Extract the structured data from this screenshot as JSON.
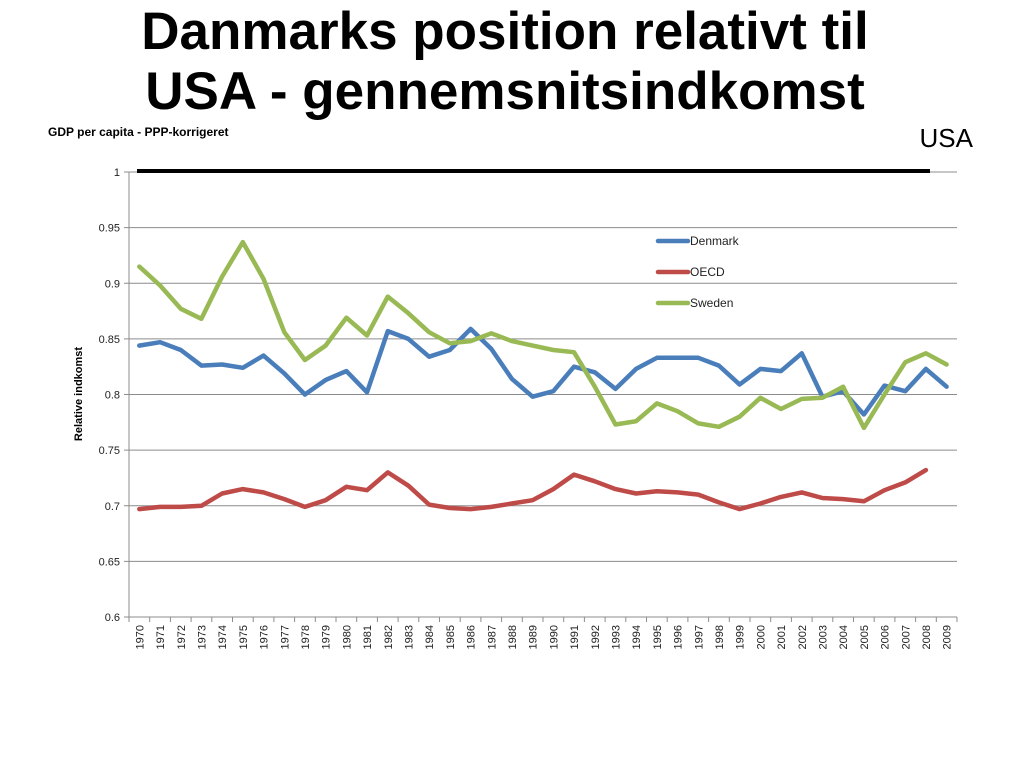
{
  "slide": {
    "title_line1": "Danmarks position relativt til",
    "title_line2": "USA - gennemsnitsindkomst"
  },
  "chart_data": {
    "type": "line",
    "title": "GDP per capita - PPP-korrigeret",
    "xlabel": "",
    "ylabel": "Relative indkomst",
    "ylim": [
      0.6,
      1.0
    ],
    "yticks": [
      "0.6",
      "0.65",
      "0.7",
      "0.75",
      "0.8",
      "0.85",
      "0.9",
      "0.95",
      "1"
    ],
    "grid": true,
    "legend_position": "top-right",
    "reference_line": {
      "label": "USA",
      "value": 1.0,
      "color": "#000000"
    },
    "x": [
      "1970",
      "1971",
      "1972",
      "1973",
      "1974",
      "1975",
      "1976",
      "1977",
      "1978",
      "1979",
      "1980",
      "1981",
      "1982",
      "1983",
      "1984",
      "1985",
      "1986",
      "1987",
      "1988",
      "1989",
      "1990",
      "1991",
      "1992",
      "1993",
      "1994",
      "1995",
      "1996",
      "1997",
      "1998",
      "1999",
      "2000",
      "2001",
      "2002",
      "2003",
      "2004",
      "2005",
      "2006",
      "2007",
      "2008",
      "2009"
    ],
    "series": [
      {
        "name": "Denmark",
        "color": "#4a7ebb",
        "values": [
          0.844,
          0.847,
          0.84,
          0.826,
          0.827,
          0.824,
          0.835,
          0.819,
          0.8,
          0.813,
          0.821,
          0.802,
          0.857,
          0.85,
          0.834,
          0.84,
          0.859,
          0.841,
          0.814,
          0.798,
          0.803,
          0.825,
          0.82,
          0.805,
          0.823,
          0.833,
          0.833,
          0.833,
          0.826,
          0.809,
          0.823,
          0.821,
          0.837,
          0.798,
          0.803,
          0.782,
          0.808,
          0.803,
          0.823,
          0.807
        ]
      },
      {
        "name": "OECD",
        "color": "#be4b48",
        "values": [
          0.697,
          0.699,
          0.699,
          0.7,
          0.711,
          0.715,
          0.712,
          0.706,
          0.699,
          0.705,
          0.717,
          0.714,
          0.73,
          0.718,
          0.701,
          0.698,
          0.697,
          0.699,
          0.702,
          0.705,
          0.715,
          0.728,
          0.722,
          0.715,
          0.711,
          0.713,
          0.712,
          0.71,
          0.703,
          0.697,
          0.702,
          0.708,
          0.712,
          0.707,
          0.706,
          0.704,
          0.714,
          0.721,
          0.732,
          null
        ]
      },
      {
        "name": "Sweden",
        "color": "#98b954",
        "values": [
          0.915,
          0.898,
          0.877,
          0.868,
          0.906,
          0.937,
          0.904,
          0.856,
          0.831,
          0.844,
          0.869,
          0.853,
          0.888,
          0.873,
          0.856,
          0.846,
          0.848,
          0.855,
          0.848,
          0.844,
          0.84,
          0.838,
          0.807,
          0.773,
          0.776,
          0.792,
          0.785,
          0.774,
          0.771,
          0.78,
          0.797,
          0.787,
          0.796,
          0.797,
          0.807,
          0.77,
          0.8,
          0.829,
          0.837,
          0.827
        ]
      }
    ]
  }
}
